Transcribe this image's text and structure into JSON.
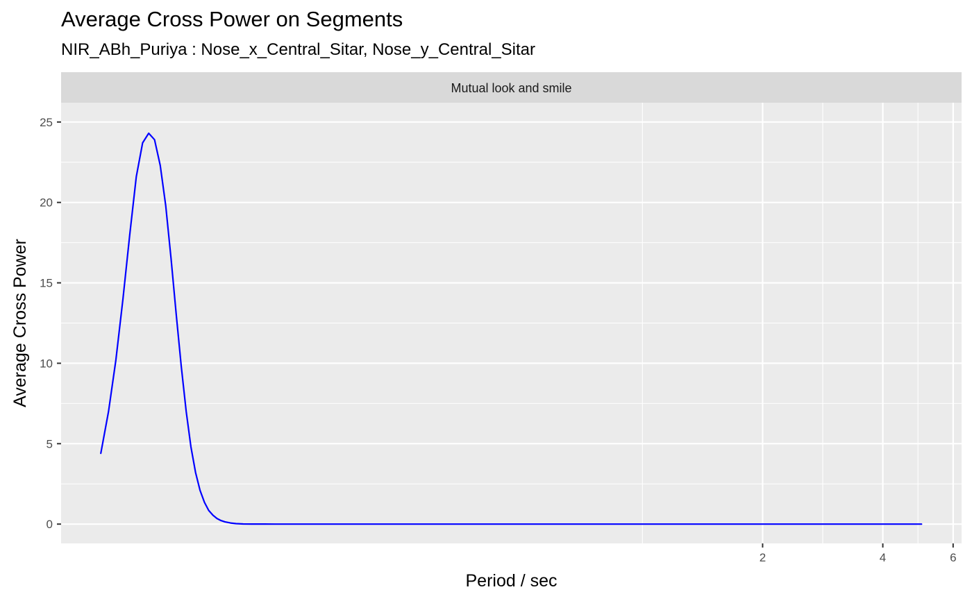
{
  "chart_data": {
    "type": "line",
    "title": "Average Cross Power on Segments",
    "subtitle": "NIR_ABh_Puriya : Nose_x_Central_Sitar, Nose_y_Central_Sitar",
    "facet": "Mutual look and smile",
    "xlabel": "Period / sec",
    "ylabel": "Average Cross Power",
    "x_scale": "log",
    "xlim": [
      0.035,
      6.3
    ],
    "ylim": [
      -1.2,
      26.2
    ],
    "x_ticks": [
      2,
      4,
      6
    ],
    "y_ticks": [
      0,
      5,
      10,
      15,
      20,
      25
    ],
    "grid": true,
    "series": [
      {
        "color": "#0000ff",
        "x": [
          0.044,
          0.046,
          0.048,
          0.05,
          0.052,
          0.054,
          0.056,
          0.058,
          0.06,
          0.062,
          0.064,
          0.066,
          0.068,
          0.07,
          0.072,
          0.074,
          0.076,
          0.078,
          0.08,
          0.082,
          0.084,
          0.086,
          0.088,
          0.09,
          0.093,
          0.096,
          0.1,
          0.105,
          0.11,
          0.12,
          0.14,
          0.2,
          0.3,
          0.5,
          1.0,
          2.0,
          3.0,
          4.0,
          5.0
        ],
        "y": [
          4.4,
          7.0,
          10.2,
          14.0,
          18.0,
          21.6,
          23.7,
          24.3,
          23.9,
          22.3,
          19.8,
          16.5,
          13.0,
          9.8,
          7.0,
          4.8,
          3.2,
          2.1,
          1.35,
          0.85,
          0.55,
          0.35,
          0.22,
          0.14,
          0.07,
          0.03,
          0.01,
          0.005,
          0.002,
          0.001,
          0,
          0,
          0,
          0,
          0,
          0,
          0,
          0,
          0
        ]
      }
    ]
  }
}
